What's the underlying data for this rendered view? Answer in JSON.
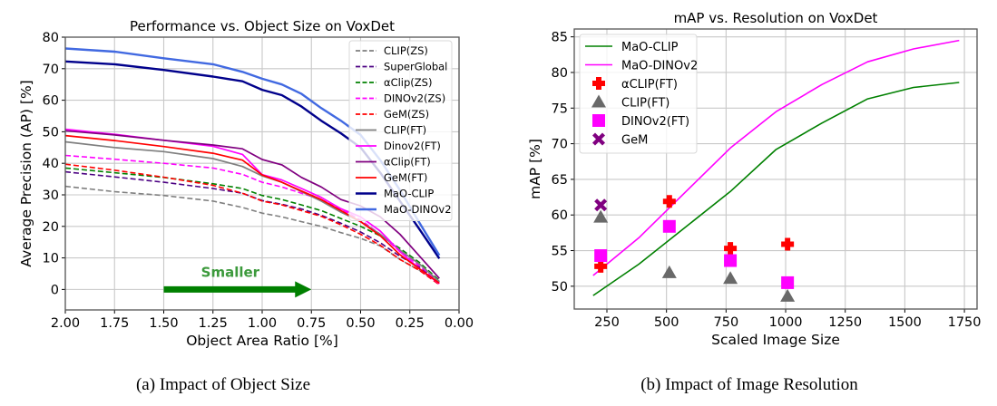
{
  "captions": {
    "left": "(a) Impact of Object Size",
    "right": "(b) Impact of Image Resolution"
  },
  "chart_data": [
    {
      "type": "line",
      "title": "Performance vs. Object Size on VoxDet",
      "xlabel": "Object Area Ratio [%]",
      "ylabel": "Average Precision (AP) [%]",
      "xlim": [
        2.0,
        0.0
      ],
      "ylim": [
        -6.5,
        80
      ],
      "x_inverted": true,
      "grid": true,
      "legend_position": "upper-right",
      "xticks": [
        2.0,
        1.75,
        1.5,
        1.25,
        1.0,
        0.75,
        0.5,
        0.25,
        0.0
      ],
      "xtick_labels": [
        "2.00",
        "1.75",
        "1.50",
        "1.25",
        "1.00",
        "0.75",
        "0.50",
        "0.25",
        "0.00"
      ],
      "yticks": [
        0,
        10,
        20,
        30,
        40,
        50,
        60,
        70,
        80
      ],
      "ytick_labels": [
        "0",
        "10",
        "20",
        "30",
        "40",
        "50",
        "60",
        "70",
        "80"
      ],
      "x": [
        2.0,
        1.75,
        1.5,
        1.25,
        1.1,
        1.0,
        0.9,
        0.8,
        0.7,
        0.6,
        0.5,
        0.4,
        0.3,
        0.2,
        0.1
      ],
      "series": [
        {
          "name": "CLIP(ZS)",
          "color": "#7f7f7f",
          "style": "dashed",
          "values": [
            32.7,
            31.0,
            29.8,
            28.0,
            26.0,
            24.2,
            23.0,
            21.5,
            20.0,
            18.0,
            16.2,
            13.8,
            9.5,
            6.0,
            2.0
          ]
        },
        {
          "name": "SuperGlobal",
          "color": "#4b0082",
          "style": "dashed",
          "values": [
            37.3,
            35.7,
            34.0,
            32.0,
            30.5,
            28.2,
            27.0,
            25.5,
            23.5,
            21.0,
            18.2,
            14.8,
            10.5,
            7.0,
            2.5
          ]
        },
        {
          "name": "αClip(ZS)",
          "color": "#008000",
          "style": "dashed",
          "values": [
            38.5,
            37.0,
            35.5,
            33.5,
            32.0,
            29.8,
            28.5,
            26.8,
            25.0,
            22.5,
            20.0,
            17.0,
            13.0,
            8.5,
            2.8
          ]
        },
        {
          "name": "DINOv2(ZS)",
          "color": "#ff00ff",
          "style": "dashed",
          "values": [
            42.5,
            41.3,
            40.0,
            38.5,
            36.5,
            34.0,
            32.5,
            30.5,
            28.5,
            25.5,
            22.0,
            17.5,
            12.0,
            7.5,
            2.2
          ]
        },
        {
          "name": "GeM(ZS)",
          "color": "#ff0000",
          "style": "dashed",
          "values": [
            39.7,
            37.8,
            35.6,
            33.0,
            30.5,
            28.0,
            26.8,
            25.0,
            23.2,
            20.5,
            17.5,
            14.0,
            9.5,
            6.0,
            1.5
          ]
        },
        {
          "name": "CLIP(FT)",
          "color": "#7f7f7f",
          "style": "solid",
          "values": [
            46.8,
            45.0,
            43.7,
            41.5,
            39.0,
            36.0,
            34.0,
            31.0,
            28.0,
            24.5,
            21.5,
            17.5,
            12.5,
            8.0,
            2.5
          ]
        },
        {
          "name": "Dinov2(FT)",
          "color": "#ff00ff",
          "style": "solid",
          "values": [
            50.8,
            49.2,
            47.3,
            45.4,
            42.8,
            36.4,
            34.7,
            32.0,
            29.2,
            25.6,
            23.0,
            18.5,
            12.0,
            6.5,
            1.8
          ]
        },
        {
          "name": "αClip(FT)",
          "color": "#800080",
          "style": "solid",
          "values": [
            50.3,
            49.0,
            47.3,
            45.8,
            44.6,
            41.2,
            39.5,
            35.5,
            32.5,
            28.5,
            26.5,
            23.0,
            17.5,
            10.5,
            3.5
          ]
        },
        {
          "name": "GeM(FT)",
          "color": "#ff0000",
          "style": "solid",
          "values": [
            48.8,
            47.2,
            45.3,
            43.2,
            41.0,
            36.3,
            34.0,
            31.2,
            28.5,
            25.0,
            21.5,
            17.0,
            11.0,
            6.5,
            2.0
          ]
        },
        {
          "name": "MaO-CLIP",
          "color": "#00008b",
          "style": "solid",
          "values": [
            72.3,
            71.4,
            69.6,
            67.5,
            66.0,
            63.3,
            61.6,
            58.0,
            53.5,
            49.5,
            45.0,
            37.0,
            28.0,
            19.0,
            9.8
          ]
        },
        {
          "name": "MaO-DINOv2",
          "color": "#4169e1",
          "style": "solid",
          "values": [
            76.4,
            75.4,
            73.3,
            71.4,
            69.0,
            66.8,
            65.0,
            62.0,
            57.5,
            53.5,
            49.0,
            41.0,
            31.5,
            21.0,
            10.8
          ]
        }
      ],
      "annotation": {
        "text": "Smaller",
        "color": "#3c9a3c",
        "arrow_color": "#008000",
        "arrow_from_x": 1.5,
        "arrow_to_x": 0.75,
        "arrow_y": 0
      }
    },
    {
      "type": "line",
      "title": "mAP vs. Resolution on VoxDet",
      "xlabel": "Scaled Image Size",
      "ylabel": "mAP [%]",
      "xlim": [
        113,
        1803
      ],
      "ylim": [
        46.8,
        86.1
      ],
      "grid": true,
      "legend_position": "upper-left",
      "xticks": [
        250,
        500,
        750,
        1000,
        1250,
        1500,
        1750
      ],
      "xtick_labels": [
        "250",
        "500",
        "750",
        "1000",
        "1250",
        "1500",
        "1750"
      ],
      "yticks": [
        50,
        55,
        60,
        65,
        70,
        75,
        80,
        85
      ],
      "ytick_labels": [
        "50",
        "55",
        "60",
        "65",
        "70",
        "75",
        "80",
        "85"
      ],
      "series": [
        {
          "name": "MaO-CLIP",
          "kind": "line",
          "color": "#008000",
          "x": [
            192,
            384,
            768,
            960,
            1152,
            1344,
            1536,
            1728
          ],
          "values": [
            48.7,
            53.1,
            63.3,
            69.2,
            72.9,
            76.3,
            77.9,
            78.6
          ]
        },
        {
          "name": "MaO-DINOv2",
          "kind": "line",
          "color": "#ff00ff",
          "x": [
            192,
            384,
            768,
            960,
            1152,
            1344,
            1536,
            1728
          ],
          "values": [
            51.5,
            56.8,
            69.4,
            74.5,
            78.3,
            81.5,
            83.3,
            84.5
          ]
        },
        {
          "name": "αCLIP(FT)",
          "kind": "marker",
          "marker": "plus",
          "color": "#ff0000",
          "x": [
            224,
            512,
            768,
            1008
          ],
          "values": [
            52.8,
            61.9,
            55.3,
            55.9
          ]
        },
        {
          "name": "CLIP(FT)",
          "kind": "marker",
          "marker": "triangle",
          "color": "#696969",
          "x": [
            224,
            512,
            768,
            1008
          ],
          "values": [
            59.7,
            51.9,
            51.1,
            48.6
          ]
        },
        {
          "name": "DINOv2(FT)",
          "kind": "marker",
          "marker": "square",
          "color": "#ff00ff",
          "x": [
            224,
            512,
            768,
            1008
          ],
          "values": [
            54.3,
            58.4,
            53.6,
            50.5
          ]
        },
        {
          "name": "GeM",
          "kind": "marker",
          "marker": "x",
          "color": "#800080",
          "x": [
            224
          ],
          "values": [
            61.4
          ]
        }
      ]
    }
  ]
}
